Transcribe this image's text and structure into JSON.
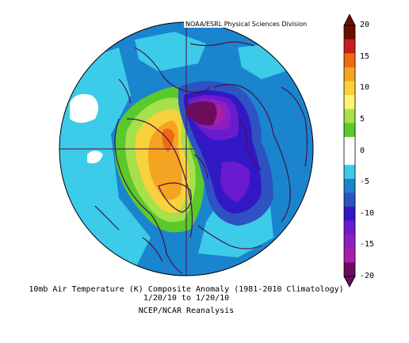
{
  "credit": "NOAA/ESRL Physical Sciences Division",
  "caption": {
    "title": "10mb Air Temperature (K) Composite Anomaly (1981-2010 Climatology)",
    "dates": "1/20/10  to 1/20/10",
    "source": "NCEP/NCAR Reanalysis"
  },
  "colorbar": {
    "ticks": [
      "20",
      "15",
      "10",
      "5",
      "0",
      "-5",
      "-10",
      "-15",
      "-20"
    ],
    "colors": [
      "#6a1000",
      "#c81e1e",
      "#f06a14",
      "#f5a322",
      "#f7d23c",
      "#fff275",
      "#a6e04b",
      "#59c92b",
      "#ffffff",
      "#ffffff",
      "#3ccbe8",
      "#1a84cf",
      "#2d52c2",
      "#3218c4",
      "#6a1bcf",
      "#8e1fbf",
      "#a91fa8",
      "#6b0d5c"
    ]
  }
}
